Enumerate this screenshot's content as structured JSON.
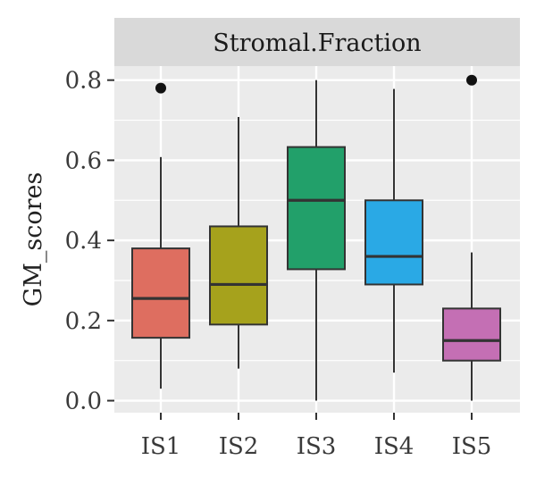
{
  "chart_data": {
    "type": "box",
    "facet_label": "Stromal.Fraction",
    "xlabel": "",
    "ylabel": "GM_scores",
    "ylim": [
      -0.03,
      0.835
    ],
    "yticks": [
      "0.0",
      "0.2",
      "0.4",
      "0.6",
      "0.8"
    ],
    "ytick_values": [
      0.0,
      0.2,
      0.4,
      0.6,
      0.8
    ],
    "grid": true,
    "legend": "none",
    "categories": [
      "IS1",
      "IS2",
      "IS3",
      "IS4",
      "IS5"
    ],
    "boxes": [
      {
        "category": "IS1",
        "min": 0.03,
        "q1": 0.157,
        "median": 0.255,
        "q3": 0.38,
        "max": 0.608,
        "outliers": [
          0.78
        ],
        "color": "#DE6E60"
      },
      {
        "category": "IS2",
        "min": 0.08,
        "q1": 0.19,
        "median": 0.29,
        "q3": 0.435,
        "max": 0.708,
        "outliers": [],
        "color": "#A6A21C"
      },
      {
        "category": "IS3",
        "min": 0.0,
        "q1": 0.328,
        "median": 0.5,
        "q3": 0.633,
        "max": 0.8,
        "outliers": [],
        "color": "#22A06A"
      },
      {
        "category": "IS4",
        "min": 0.07,
        "q1": 0.29,
        "median": 0.36,
        "q3": 0.5,
        "max": 0.778,
        "outliers": [],
        "color": "#2AA9E5"
      },
      {
        "category": "IS5",
        "min": 0.0,
        "q1": 0.1,
        "median": 0.15,
        "q3": 0.23,
        "max": 0.37,
        "outliers": [
          0.8
        ],
        "color": "#C46FB4"
      }
    ]
  },
  "colors": {
    "panel_bg": "#EBEBEB",
    "strip_bg": "#D9D9D9",
    "grid": "#FFFFFF",
    "line": "#333333"
  }
}
